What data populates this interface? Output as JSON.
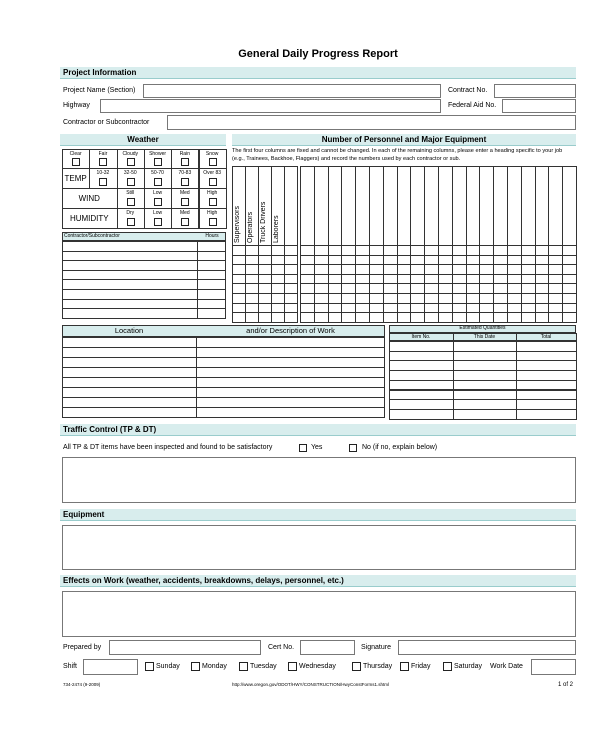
{
  "title": "General Daily Progress Report",
  "project": {
    "header": "Project Information",
    "name_label": "Project Name (Section)",
    "contract_label": "Contract No.",
    "highway_label": "Highway",
    "federal_label": "Federal Aid No.",
    "contractor_label": "Contractor or Subcontractor"
  },
  "weather": {
    "header": "Weather",
    "conditions": [
      "Clear",
      "Fair",
      "Cloudy",
      "Shower",
      "Rain",
      "Snow"
    ],
    "temp_label": "TEMP",
    "temp_options": [
      "10-32",
      "32-50",
      "50-70",
      "70-83",
      "Over 83"
    ],
    "wind_label": "WIND",
    "wind_options": [
      "Still",
      "Low",
      "Med",
      "High"
    ],
    "humidity_label": "HUMIDITY",
    "humidity_options": [
      "Dry",
      "Low",
      "Med",
      "High"
    ]
  },
  "contractor_table": {
    "col1": "Contractor/Subcontractor",
    "col2": "Hours"
  },
  "personnel": {
    "header": "Number of Personnel and Major Equipment",
    "instructions": "The first four columns are fixed and cannot be changed. In each of the remaining columns, please enter a heading specific to your job (e.g., Trainees, Backhoe, Flaggers) and record the numbers used by each contractor or sub.",
    "fixed_columns": [
      "Supervisors",
      "Operators",
      "Truck Drivers",
      "Laborers"
    ]
  },
  "location": {
    "col1": "Location",
    "col2": "and/or Description of Work",
    "quantities_header": "Estimated Quantities",
    "quantity_columns": [
      "Item No.",
      "This Date",
      "Total"
    ]
  },
  "traffic": {
    "header": "Traffic Control (TP & DT)",
    "statement": "All TP & DT items have been inspected and found to be satisfactory",
    "yes": "Yes",
    "no": "No (if no, explain below)"
  },
  "equipment": {
    "header": "Equipment"
  },
  "effects": {
    "header": "Effects on Work (weather, accidents, breakdowns, delays, personnel, etc.)"
  },
  "signoff": {
    "prepared_by": "Prepared by",
    "cert_no": "Cert No.",
    "signature": "Signature",
    "shift": "Shift",
    "days": [
      "Sunday",
      "Monday",
      "Tuesday",
      "Wednesday",
      "Thursday",
      "Friday",
      "Saturday"
    ],
    "work_date": "Work Date"
  },
  "footer": {
    "form_no": "734-2474 (9-2009)",
    "url": "http://www.oregon.gov/ODOT/HWY/CONSTRUCTION/HwyConstForms1.shtml",
    "page": "1 of 2"
  }
}
